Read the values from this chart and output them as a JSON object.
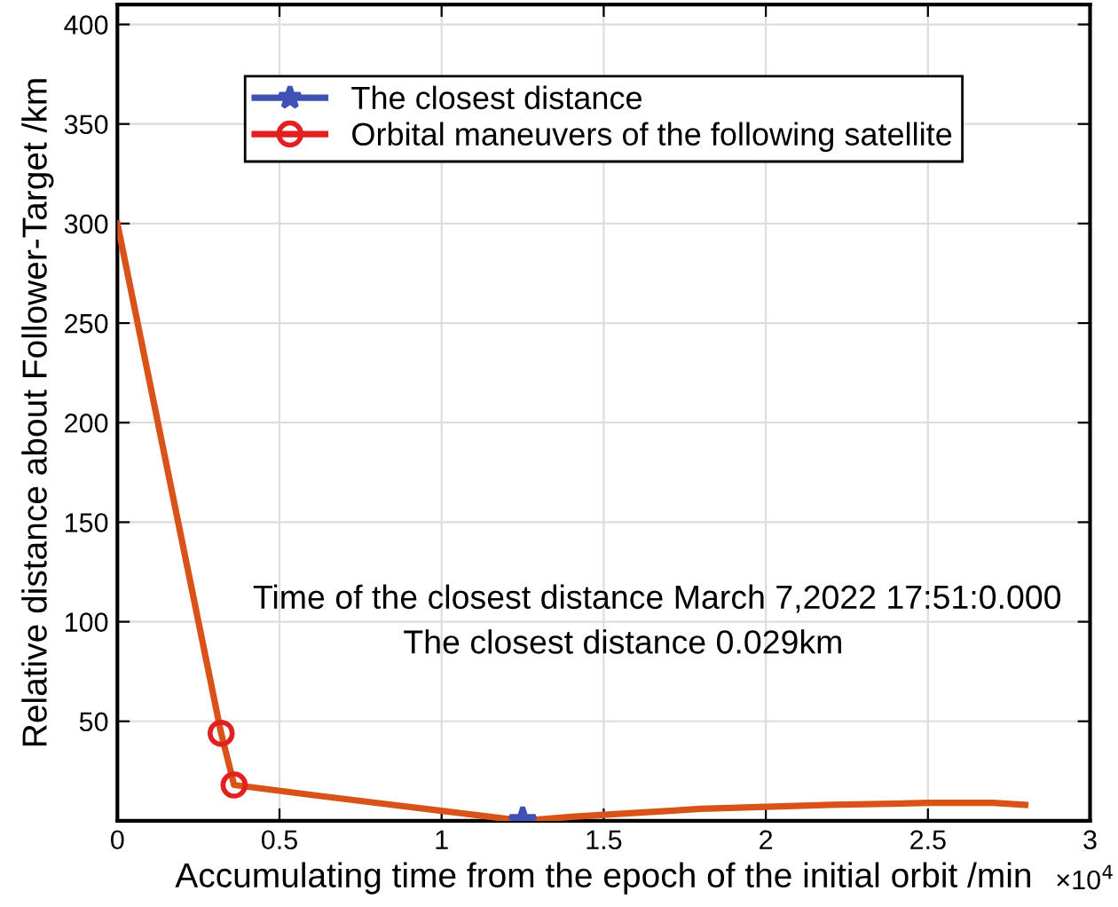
{
  "chart_data": {
    "type": "line",
    "xlabel": "Accumulating time from the epoch of the initial orbit /min",
    "ylabel": "Relative distance about Follower-Target /km",
    "xlim": [
      0,
      3
    ],
    "xticks": [
      0,
      0.5,
      1,
      1.5,
      2,
      2.5,
      3
    ],
    "ylim": [
      0,
      410
    ],
    "yticks": [
      50,
      100,
      150,
      200,
      250,
      300,
      350,
      400
    ],
    "grid": true,
    "legend": "top",
    "series": [
      {
        "color": "#d95319",
        "marker": "none",
        "x": [
          0,
          0.32,
          0.36,
          0.6,
          0.8,
          1.0,
          1.25,
          1.4,
          1.6,
          1.8,
          2.0,
          2.2,
          2.5,
          2.7,
          2.8
        ],
        "values": [
          300,
          44,
          18,
          13,
          9,
          5,
          0.029,
          2,
          4,
          6,
          7,
          8,
          9,
          9,
          8
        ]
      },
      {
        "name": "The closest distance",
        "type": "scatter",
        "color": "#3f51b5",
        "marker": "star",
        "x": [
          1.25
        ],
        "values": [
          0.029
        ]
      },
      {
        "name": "Orbital maneuvers of the following satellite",
        "type": "scatter",
        "color": "#e32020",
        "marker": "circle",
        "x": [
          0.32,
          0.36
        ],
        "values": [
          44,
          18
        ]
      }
    ],
    "annotations": [
      "Time of the closest distance March 7,2022 17:51:0.000",
      "The closest distance 0.029km",
      "×10$^{4}$"
    ]
  }
}
